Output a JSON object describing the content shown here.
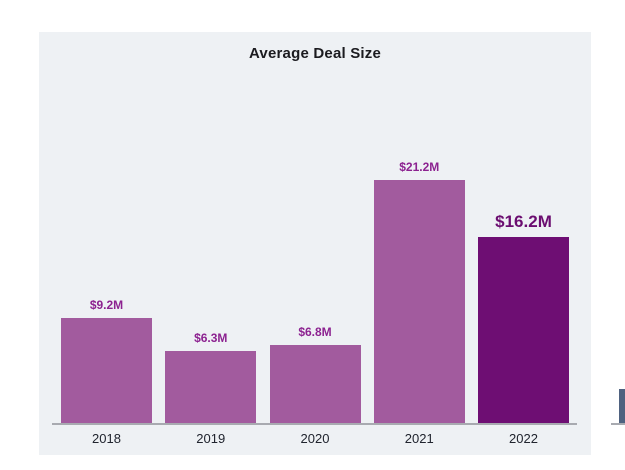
{
  "page": {
    "background": "#ffffff"
  },
  "card": {
    "background": "#eef1f4"
  },
  "chart_data": {
    "type": "bar",
    "title": "Average Deal Size",
    "categories": [
      "2018",
      "2019",
      "2020",
      "2021",
      "2022"
    ],
    "values": [
      9.2,
      6.3,
      6.8,
      21.2,
      16.2
    ],
    "value_labels": [
      "$9.2M",
      "$6.3M",
      "$6.8M",
      "$21.2M",
      "$16.2M"
    ],
    "highlight_index": 4,
    "ylim": [
      0,
      21.2
    ],
    "grid": false,
    "legend": false,
    "xlabel": "",
    "ylabel": "",
    "colors": {
      "bar": "#a25b9e",
      "highlight_bar": "#6e0e73",
      "value_label": "#8c2290",
      "highlight_value_label": "#6b0d70",
      "axis_line": "#a8aab0",
      "tick_label": "#20242e",
      "title": "#1b1b1f"
    }
  },
  "adjacent_chart_fragment": {
    "bar_color": "#4f6280",
    "axis_line_color": "#a8aab0"
  }
}
